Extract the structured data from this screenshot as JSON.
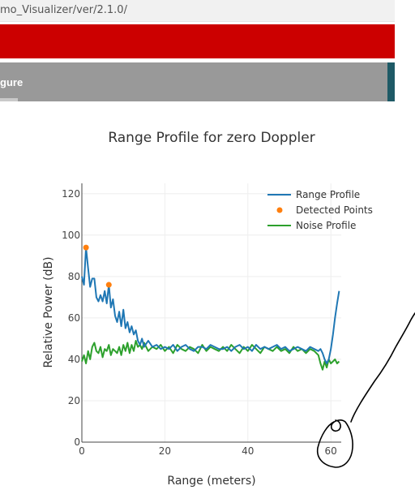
{
  "browser": {
    "url_fragment": "mo_Visualizer/ver/2.1.0/"
  },
  "toolbar": {
    "tab_label": "gure"
  },
  "colors": {
    "brand_red": "#cc0000",
    "toolbar_gray": "#999999",
    "toolbar_accent": "#1e5a66",
    "range_profile": "#1f77b4",
    "detected_points": "#ff7f0e",
    "noise_profile": "#2ca02c",
    "annotation_ink": "#000000"
  },
  "annotation": {
    "type": "hand-drawn freehand circle and line",
    "target": "x-axis end near 60 m"
  },
  "chart_data": {
    "type": "line",
    "title": "Range Profile for zero Doppler",
    "xlabel": "Range (meters)",
    "ylabel": "Relative Power (dB)",
    "xlim": [
      0,
      62.5
    ],
    "ylim": [
      0,
      125
    ],
    "xticks": [
      0,
      20,
      40,
      60
    ],
    "yticks": [
      0,
      20,
      40,
      60,
      80,
      100,
      120
    ],
    "grid": true,
    "legend_position": "top-right",
    "series": [
      {
        "name": "Range Profile",
        "mode": "lines",
        "x": [
          0,
          0.5,
          1,
          1.5,
          2,
          2.5,
          3,
          3.5,
          4,
          4.5,
          5,
          5.5,
          6,
          6.5,
          7,
          7.5,
          8,
          8.5,
          9,
          9.5,
          10,
          10.5,
          11,
          11.5,
          12,
          12.5,
          13,
          13.5,
          14,
          14.5,
          15,
          16,
          17,
          18,
          19,
          20,
          21,
          22,
          23,
          24,
          25,
          26,
          27,
          28,
          29,
          30,
          31,
          32,
          33,
          34,
          35,
          36,
          37,
          38,
          39,
          40,
          41,
          42,
          43,
          44,
          45,
          46,
          47,
          48,
          49,
          50,
          51,
          52,
          53,
          54,
          55,
          56,
          57,
          57.5,
          58,
          58.5,
          59,
          59.5,
          60,
          60.5,
          61,
          61.5,
          62
        ],
        "y": [
          80,
          76,
          94,
          84,
          75,
          79,
          79,
          70,
          68,
          71,
          68,
          73,
          67,
          76,
          65,
          69,
          61,
          58,
          63,
          56,
          64,
          55,
          58,
          53,
          56,
          52,
          54,
          49,
          47,
          50,
          46,
          49,
          46,
          47,
          45,
          46,
          45,
          47,
          44,
          46,
          47,
          45,
          44,
          46,
          46,
          45,
          47,
          46,
          45,
          45,
          46,
          44,
          46,
          47,
          45,
          46,
          44,
          47,
          45,
          46,
          45,
          46,
          47,
          45,
          46,
          44,
          45,
          46,
          45,
          44,
          46,
          45,
          44,
          45,
          43,
          40,
          38,
          40,
          45,
          52,
          60,
          67,
          73
        ]
      },
      {
        "name": "Detected Points",
        "mode": "markers",
        "x": [
          1,
          6.5
        ],
        "y": [
          94,
          76
        ]
      },
      {
        "name": "Noise Profile",
        "mode": "lines",
        "x": [
          0,
          0.5,
          1,
          1.5,
          2,
          2.5,
          3,
          3.5,
          4,
          4.5,
          5,
          5.5,
          6,
          6.5,
          7,
          7.5,
          8,
          8.5,
          9,
          9.5,
          10,
          10.5,
          11,
          11.5,
          12,
          12.5,
          13,
          13.5,
          14,
          14.5,
          15,
          16,
          17,
          18,
          19,
          20,
          21,
          22,
          23,
          24,
          25,
          26,
          27,
          28,
          29,
          30,
          31,
          32,
          33,
          34,
          35,
          36,
          37,
          38,
          39,
          40,
          41,
          42,
          43,
          44,
          45,
          46,
          47,
          48,
          49,
          50,
          51,
          52,
          53,
          54,
          55,
          56,
          57,
          57.5,
          58,
          58.5,
          59,
          59.5,
          60,
          60.5,
          61,
          61.5,
          62
        ],
        "y": [
          39,
          42,
          38,
          44,
          40,
          46,
          48,
          44,
          43,
          46,
          41,
          45,
          44,
          47,
          42,
          45,
          44,
          43,
          46,
          42,
          47,
          44,
          48,
          43,
          47,
          44,
          49,
          46,
          47,
          45,
          48,
          44,
          46,
          45,
          47,
          44,
          46,
          43,
          47,
          45,
          44,
          46,
          45,
          43,
          47,
          44,
          46,
          45,
          44,
          46,
          44,
          47,
          45,
          43,
          46,
          44,
          47,
          45,
          43,
          46,
          45,
          44,
          46,
          44,
          45,
          43,
          46,
          44,
          45,
          43,
          45,
          44,
          42,
          38,
          35,
          39,
          36,
          40,
          38,
          39,
          40,
          38,
          39
        ]
      }
    ]
  }
}
